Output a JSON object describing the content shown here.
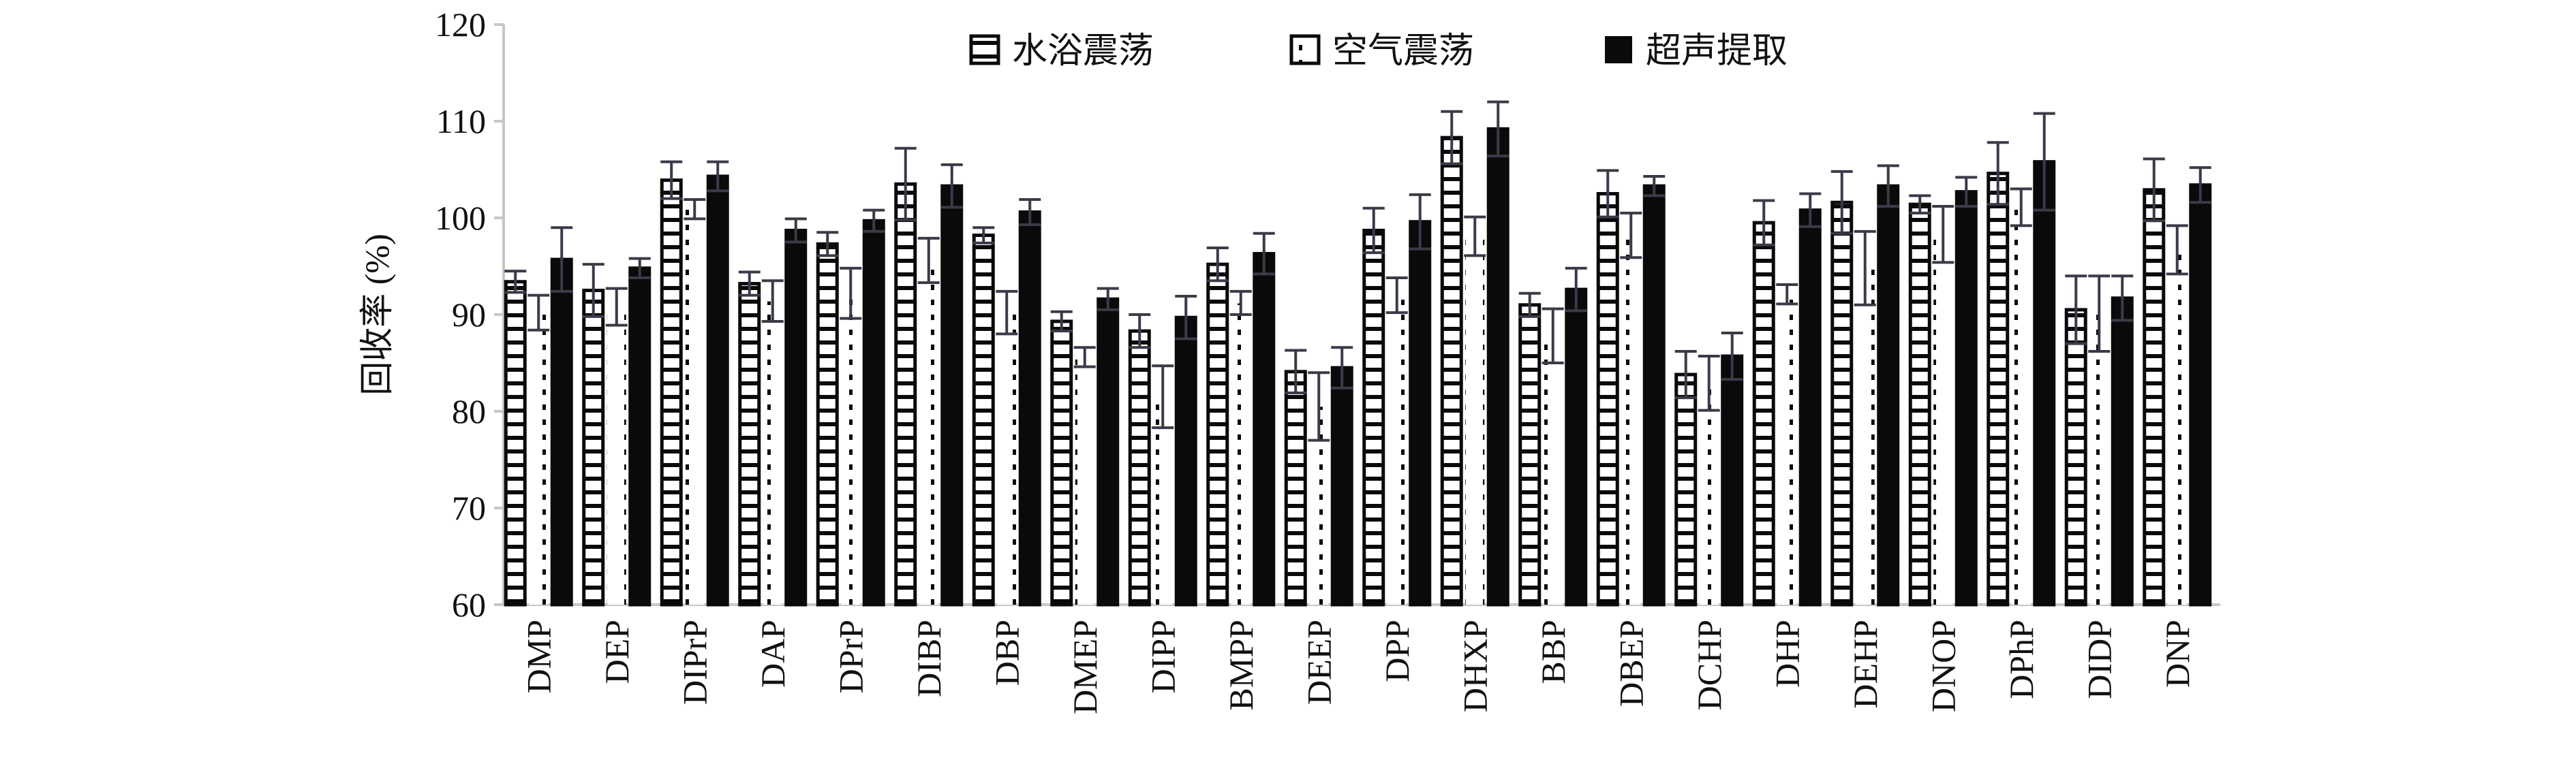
{
  "chart_data": {
    "type": "bar",
    "title": "",
    "xlabel": "",
    "ylabel": "回收率 (%)",
    "ylim": [
      60,
      120
    ],
    "yticks": [
      60,
      70,
      80,
      90,
      100,
      110,
      120
    ],
    "grid": false,
    "legend_position": "top-center",
    "categories": [
      "DMP",
      "DEP",
      "DIPrP",
      "DAP",
      "DPrP",
      "DIBP",
      "DBP",
      "DMEP",
      "DIPP",
      "BMPP",
      "DEEP",
      "DPP",
      "DHXP",
      "BBP",
      "DBEP",
      "DCHP",
      "DHP",
      "DEHP",
      "DNOP",
      "DPhP",
      "DIDP",
      "DNP"
    ],
    "series": [
      {
        "name": "水浴震荡",
        "pattern": "horizontal-stripes",
        "values": [
          93.4,
          92.5,
          103.9,
          93.2,
          97.3,
          103.5,
          98.2,
          89.3,
          88.3,
          95.2,
          84.1,
          98.7,
          108.3,
          91.0,
          102.5,
          83.8,
          99.5,
          101.6,
          101.4,
          104.6,
          90.5,
          102.9
        ],
        "errors": [
          1.1,
          2.7,
          1.9,
          1.2,
          1.2,
          3.7,
          0.8,
          1.0,
          1.7,
          1.7,
          2.2,
          2.3,
          2.7,
          1.2,
          2.4,
          2.4,
          2.3,
          3.2,
          0.9,
          3.2,
          3.5,
          3.2
        ]
      },
      {
        "name": "空气震荡",
        "pattern": "dotted",
        "values": [
          90.2,
          90.8,
          100.9,
          91.4,
          92.2,
          95.6,
          90.2,
          85.6,
          81.5,
          91.2,
          80.5,
          92.0,
          98.1,
          87.8,
          98.2,
          82.9,
          92.1,
          94.8,
          98.3,
          101.1,
          90.1,
          96.7
        ],
        "errors": [
          1.8,
          1.9,
          1.0,
          2.1,
          2.6,
          2.3,
          2.2,
          1.0,
          3.2,
          1.2,
          3.5,
          1.8,
          2.0,
          2.8,
          2.3,
          2.8,
          1.0,
          3.8,
          2.9,
          1.9,
          3.9,
          2.5
        ]
      },
      {
        "name": "超声提取",
        "pattern": "solid",
        "values": [
          95.7,
          94.8,
          104.3,
          98.7,
          99.7,
          103.3,
          100.6,
          91.6,
          89.7,
          96.3,
          84.5,
          99.6,
          109.2,
          92.6,
          103.3,
          85.7,
          100.8,
          103.3,
          102.7,
          105.8,
          91.7,
          103.4
        ],
        "errors": [
          3.3,
          1.0,
          1.5,
          1.2,
          1.1,
          2.2,
          1.3,
          1.1,
          2.2,
          2.1,
          2.1,
          2.8,
          2.8,
          2.2,
          1.0,
          2.4,
          1.7,
          2.1,
          1.5,
          5.0,
          2.3,
          1.8
        ]
      }
    ]
  }
}
